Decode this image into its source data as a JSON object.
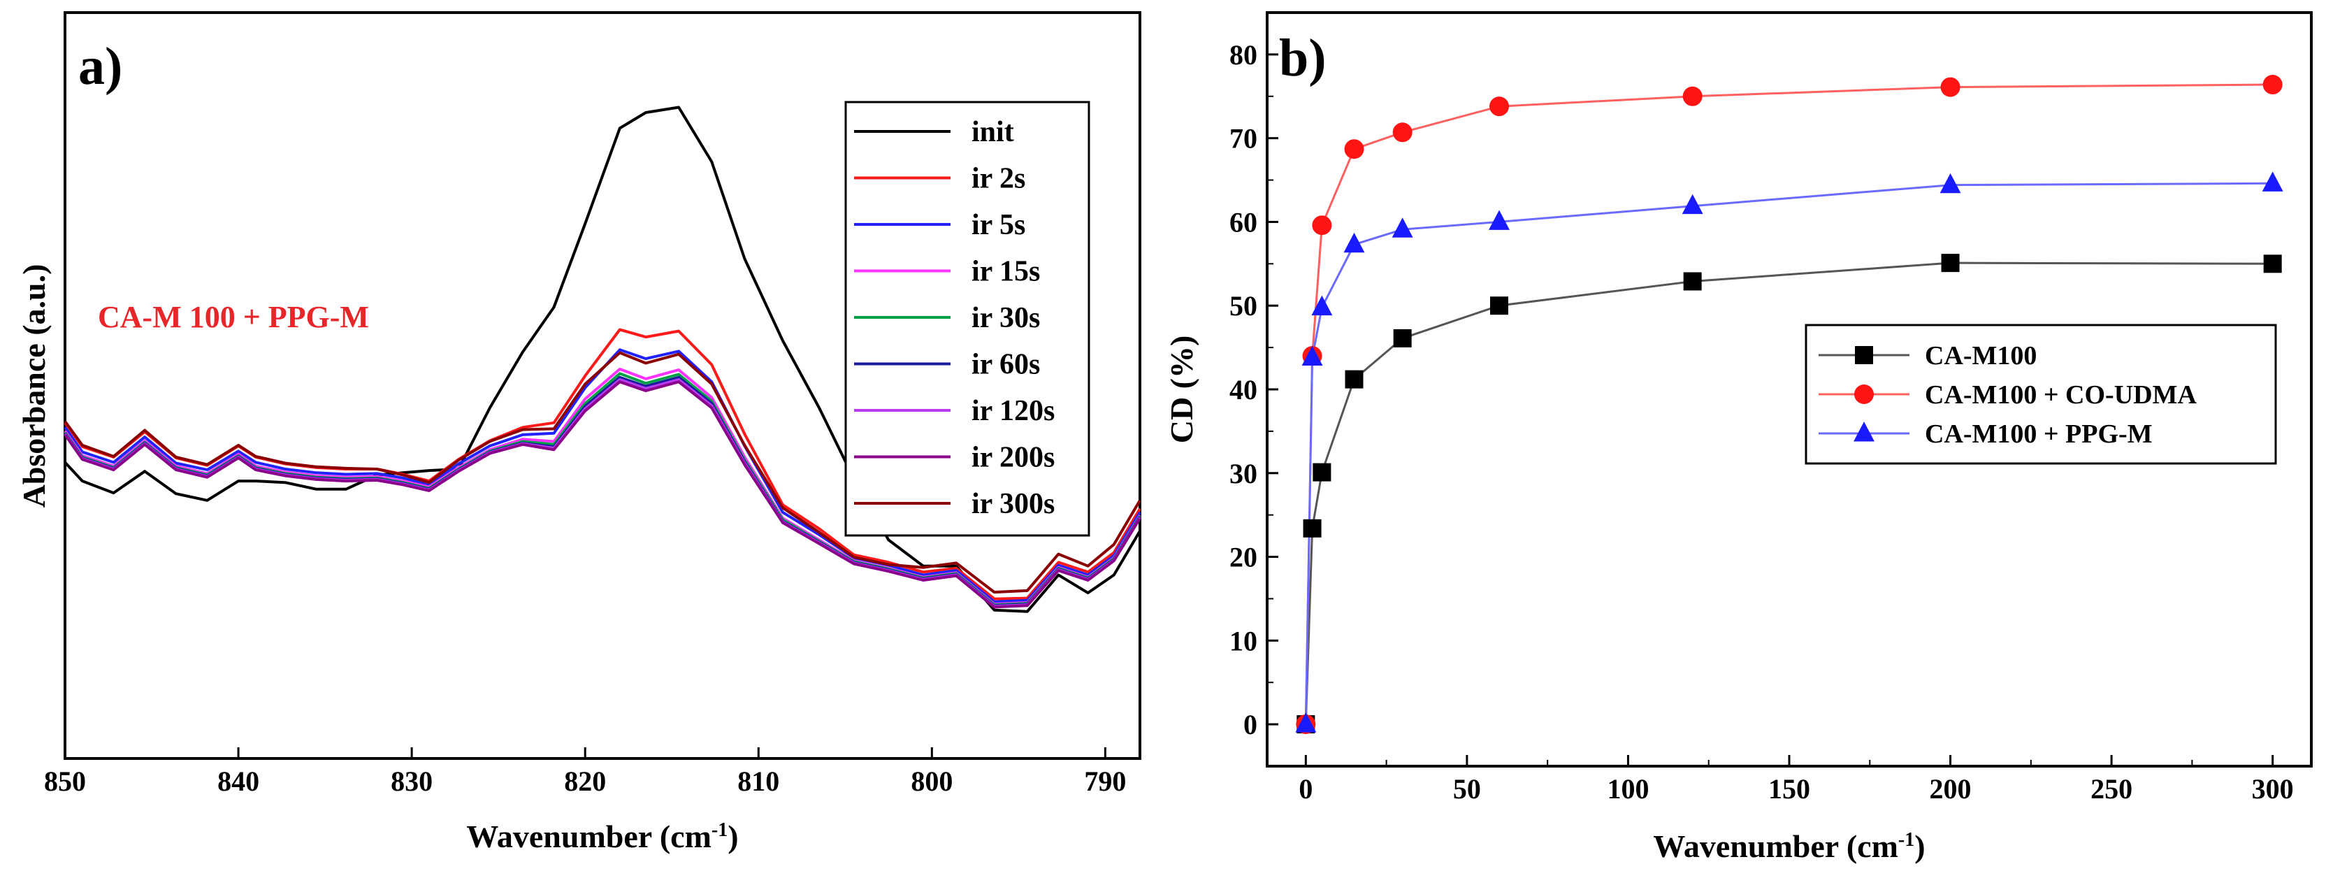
{
  "chart_data": [
    {
      "panel_label": "a)",
      "type": "line",
      "title": "",
      "xlabel": "Wavenumber (cm",
      "xlabel_sup": "-1",
      "xlabel_close": ")",
      "ylabel": "Absorbance (a.u.)",
      "xlim": [
        850,
        788
      ],
      "ylim": [
        0,
        1
      ],
      "xticks": [
        850,
        840,
        830,
        820,
        810,
        800,
        790
      ],
      "annotation": "CA-M 100 + PPG-M",
      "annotation_color": "#e8262a",
      "x": [
        850,
        849,
        847.2,
        845.4,
        843.6,
        841.8,
        840,
        839,
        837.3,
        835.5,
        833.8,
        832,
        830.5,
        829,
        827.3,
        825.5,
        823.6,
        821.8,
        820,
        818,
        816.5,
        814.6,
        812.7,
        810.8,
        808.6,
        806.5,
        804.5,
        802.5,
        800.5,
        798.6,
        796.4,
        794.5,
        792.7,
        791,
        789.5,
        788
      ],
      "series": [
        {
          "name": "init",
          "color": "#000000",
          "values": [
            0.397,
            0.372,
            0.356,
            0.385,
            0.355,
            0.346,
            0.372,
            0.372,
            0.37,
            0.361,
            0.361,
            0.38,
            0.383,
            0.386,
            0.388,
            0.47,
            0.545,
            0.605,
            0.717,
            0.845,
            0.866,
            0.873,
            0.8,
            0.67,
            0.56,
            0.47,
            0.375,
            0.293,
            0.258,
            0.258,
            0.199,
            0.197,
            0.246,
            0.222,
            0.246,
            0.305
          ]
        },
        {
          "name": "ir 2s",
          "color": "#ff1a1a",
          "values": [
            0.45,
            0.418,
            0.404,
            0.438,
            0.403,
            0.393,
            0.419,
            0.404,
            0.395,
            0.39,
            0.388,
            0.388,
            0.381,
            0.372,
            0.401,
            0.426,
            0.444,
            0.45,
            0.513,
            0.575,
            0.565,
            0.573,
            0.528,
            0.435,
            0.34,
            0.308,
            0.273,
            0.263,
            0.25,
            0.255,
            0.214,
            0.215,
            0.263,
            0.25,
            0.276,
            0.335
          ]
        },
        {
          "name": "ir 5s",
          "color": "#2222ff",
          "values": [
            0.444,
            0.411,
            0.397,
            0.431,
            0.396,
            0.387,
            0.412,
            0.397,
            0.388,
            0.383,
            0.381,
            0.382,
            0.376,
            0.367,
            0.395,
            0.419,
            0.434,
            0.436,
            0.497,
            0.548,
            0.536,
            0.546,
            0.505,
            0.419,
            0.33,
            0.3,
            0.269,
            0.259,
            0.246,
            0.252,
            0.21,
            0.212,
            0.259,
            0.246,
            0.272,
            0.33
          ]
        },
        {
          "name": "ir 15s",
          "color": "#ff33ff",
          "values": [
            0.439,
            0.406,
            0.392,
            0.426,
            0.392,
            0.382,
            0.408,
            0.392,
            0.384,
            0.379,
            0.377,
            0.378,
            0.372,
            0.364,
            0.39,
            0.414,
            0.428,
            0.425,
            0.482,
            0.522,
            0.509,
            0.521,
            0.484,
            0.404,
            0.322,
            0.293,
            0.265,
            0.255,
            0.243,
            0.249,
            0.207,
            0.209,
            0.256,
            0.243,
            0.269,
            0.326
          ]
        },
        {
          "name": "ir 30s",
          "color": "#00a046",
          "values": [
            0.437,
            0.404,
            0.39,
            0.424,
            0.39,
            0.38,
            0.406,
            0.39,
            0.382,
            0.377,
            0.375,
            0.376,
            0.37,
            0.362,
            0.388,
            0.412,
            0.425,
            0.421,
            0.476,
            0.516,
            0.503,
            0.515,
            0.479,
            0.4,
            0.32,
            0.291,
            0.264,
            0.254,
            0.242,
            0.248,
            0.206,
            0.208,
            0.255,
            0.242,
            0.268,
            0.325
          ]
        },
        {
          "name": "ir 60s",
          "color": "#1a1a9e",
          "values": [
            0.436,
            0.403,
            0.389,
            0.423,
            0.389,
            0.379,
            0.405,
            0.389,
            0.381,
            0.376,
            0.374,
            0.375,
            0.369,
            0.361,
            0.387,
            0.411,
            0.423,
            0.418,
            0.472,
            0.511,
            0.499,
            0.511,
            0.476,
            0.398,
            0.318,
            0.29,
            0.263,
            0.253,
            0.241,
            0.247,
            0.205,
            0.207,
            0.254,
            0.241,
            0.267,
            0.324
          ]
        },
        {
          "name": "ir 120s",
          "color": "#b83cf0",
          "values": [
            0.435,
            0.402,
            0.388,
            0.422,
            0.388,
            0.378,
            0.404,
            0.388,
            0.38,
            0.375,
            0.373,
            0.374,
            0.368,
            0.36,
            0.386,
            0.41,
            0.422,
            0.416,
            0.469,
            0.508,
            0.496,
            0.508,
            0.473,
            0.396,
            0.317,
            0.289,
            0.262,
            0.252,
            0.24,
            0.246,
            0.204,
            0.206,
            0.253,
            0.24,
            0.266,
            0.323
          ]
        },
        {
          "name": "ir 200s",
          "color": "#8b008b",
          "values": [
            0.434,
            0.401,
            0.387,
            0.421,
            0.387,
            0.377,
            0.403,
            0.387,
            0.379,
            0.374,
            0.372,
            0.373,
            0.367,
            0.359,
            0.385,
            0.409,
            0.421,
            0.414,
            0.466,
            0.505,
            0.493,
            0.505,
            0.47,
            0.394,
            0.316,
            0.288,
            0.261,
            0.251,
            0.239,
            0.245,
            0.203,
            0.205,
            0.252,
            0.239,
            0.265,
            0.322
          ]
        },
        {
          "name": "ir 300s",
          "color": "#8b0000",
          "values": [
            0.452,
            0.42,
            0.405,
            0.44,
            0.404,
            0.394,
            0.42,
            0.405,
            0.396,
            0.391,
            0.389,
            0.388,
            0.38,
            0.37,
            0.4,
            0.425,
            0.441,
            0.442,
            0.502,
            0.544,
            0.53,
            0.542,
            0.502,
            0.42,
            0.336,
            0.303,
            0.27,
            0.26,
            0.256,
            0.262,
            0.223,
            0.225,
            0.274,
            0.258,
            0.287,
            0.346
          ]
        }
      ]
    },
    {
      "panel_label": "b)",
      "type": "line",
      "title": "",
      "xlabel": "Wavenumber (cm",
      "xlabel_sup": "-1",
      "xlabel_close": ")",
      "ylabel": "CD (%)",
      "xlim": [
        -12,
        312
      ],
      "ylim": [
        -5,
        85
      ],
      "xticks": [
        0,
        50,
        100,
        150,
        200,
        250,
        300
      ],
      "yticks": [
        0,
        10,
        20,
        30,
        40,
        50,
        60,
        70,
        80
      ],
      "x": [
        0,
        2,
        5,
        15,
        30,
        60,
        120,
        200,
        300
      ],
      "legend_position": "center-right",
      "series": [
        {
          "name": "CA-M100",
          "color": "#000000",
          "line_color": "#555555",
          "marker": "square",
          "values": [
            0,
            23.4,
            30.1,
            41.2,
            46.1,
            50.0,
            52.9,
            55.1,
            55.0
          ]
        },
        {
          "name": "CA-M100 + CO-UDMA",
          "color": "#ff1414",
          "line_color": "#ff6060",
          "marker": "circle",
          "values": [
            0,
            44.0,
            59.6,
            68.7,
            70.7,
            73.8,
            75.0,
            76.1,
            76.4
          ]
        },
        {
          "name": "CA-M100 + PPG-M",
          "color": "#1a1aff",
          "line_color": "#6a6aff",
          "marker": "triangle",
          "values": [
            0,
            43.8,
            49.8,
            57.3,
            59.1,
            60.0,
            61.9,
            64.4,
            64.6
          ]
        }
      ]
    }
  ]
}
